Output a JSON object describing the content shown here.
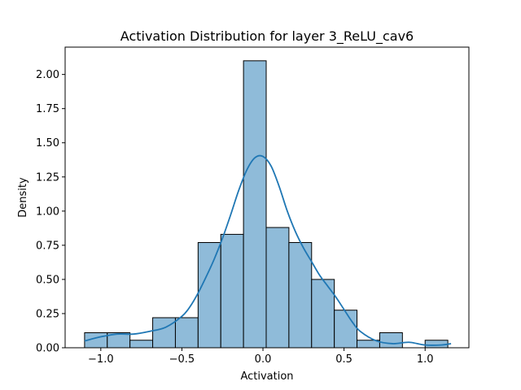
{
  "chart_data": {
    "type": "histogram",
    "title": "Activation Distribution for layer 3_ReLU_cav6",
    "xlabel": "Activation",
    "ylabel": "Density",
    "xlim": [
      -1.22,
      1.27
    ],
    "ylim": [
      0,
      2.2
    ],
    "xticks": [
      -1.0,
      -0.5,
      0.0,
      0.5,
      1.0
    ],
    "xtick_labels": [
      "−1.0",
      "−0.5",
      "0.0",
      "0.5",
      "1.0"
    ],
    "yticks": [
      0.0,
      0.25,
      0.5,
      0.75,
      1.0,
      1.25,
      1.5,
      1.75,
      2.0
    ],
    "ytick_labels": [
      "0.00",
      "0.25",
      "0.50",
      "0.75",
      "1.00",
      "1.25",
      "1.50",
      "1.75",
      "2.00"
    ],
    "bin_edges": [
      -1.1,
      -0.96,
      -0.82,
      -0.68,
      -0.54,
      -0.4,
      -0.26,
      -0.12,
      0.02,
      0.16,
      0.3,
      0.44,
      0.58,
      0.72,
      0.86,
      1.0,
      1.14
    ],
    "bin_density": [
      0.11,
      0.11,
      0.055,
      0.22,
      0.22,
      0.77,
      0.83,
      2.1,
      0.88,
      0.77,
      0.5,
      0.275,
      0.055,
      0.11,
      0,
      0.055
    ],
    "kde": {
      "x": [
        -1.1,
        -1.0,
        -0.9,
        -0.8,
        -0.7,
        -0.6,
        -0.5,
        -0.45,
        -0.4,
        -0.35,
        -0.3,
        -0.25,
        -0.2,
        -0.15,
        -0.1,
        -0.05,
        0.0,
        0.05,
        0.1,
        0.15,
        0.2,
        0.25,
        0.3,
        0.35,
        0.4,
        0.45,
        0.5,
        0.55,
        0.6,
        0.7,
        0.8,
        0.9,
        1.0,
        1.1,
        1.16
      ],
      "y": [
        0.05,
        0.08,
        0.1,
        0.1,
        0.12,
        0.15,
        0.23,
        0.3,
        0.4,
        0.52,
        0.65,
        0.8,
        0.97,
        1.15,
        1.3,
        1.39,
        1.4,
        1.33,
        1.18,
        1.0,
        0.85,
        0.73,
        0.63,
        0.53,
        0.45,
        0.37,
        0.28,
        0.19,
        0.12,
        0.05,
        0.03,
        0.04,
        0.02,
        0.02,
        0.03
      ]
    },
    "grid": false,
    "legend": false
  },
  "colors": {
    "bar_fill": "#8fbbd9",
    "kde_line": "#1f77b4",
    "axes": "#000000"
  }
}
